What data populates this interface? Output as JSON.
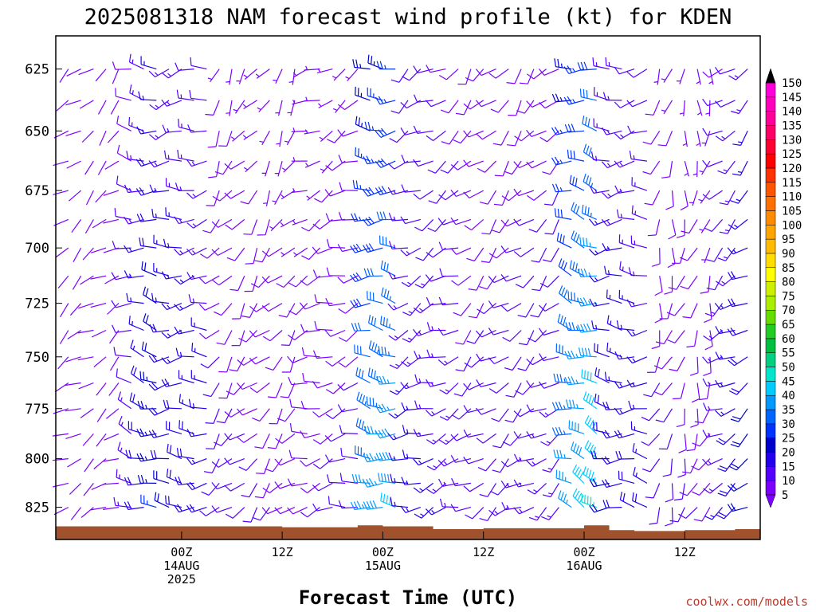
{
  "chart_data": {
    "type": "wind-barb-profile",
    "title": "2025081318 NAM forecast wind profile (kt) for KDEN",
    "xlabel": "Forecast Time (UTC)",
    "ylabel": "",
    "credit": "coolwx.com/models",
    "y_axis": {
      "quantity": "pressure (hPa)",
      "ticks": [
        625,
        650,
        675,
        700,
        725,
        750,
        775,
        800,
        825
      ],
      "range": [
        842,
        612
      ],
      "inverted": true
    },
    "x_axis": {
      "range_hours_from_run": [
        -9,
        75
      ],
      "ticks": [
        {
          "hour": 6,
          "line1": "00Z",
          "line2": "14AUG",
          "line3": "2025"
        },
        {
          "hour": 18,
          "line1": "12Z",
          "line2": "",
          "line3": ""
        },
        {
          "hour": 30,
          "line1": "00Z",
          "line2": "15AUG",
          "line3": ""
        },
        {
          "hour": 42,
          "line1": "12Z",
          "line2": "",
          "line3": ""
        },
        {
          "hour": 54,
          "line1": "00Z",
          "line2": "16AUG",
          "line3": ""
        },
        {
          "hour": 66,
          "line1": "12Z",
          "line2": "",
          "line3": ""
        },
        {
          "hour": 78,
          "line1": "00Z",
          "line2": "17AUG",
          "line3": ""
        }
      ]
    },
    "levels_hpa": [
      625,
      637.5,
      650,
      662.5,
      675,
      687.5,
      700,
      712.5,
      725,
      737.5,
      750,
      762.5,
      775,
      787.5,
      800,
      812.5,
      825,
      837.5
    ],
    "wind_segments": [
      {
        "hour_start": 0,
        "hour_end": 4,
        "speed_start": 12,
        "speed_end": 25,
        "dir": 280
      },
      {
        "hour_start": 4,
        "hour_end": 10,
        "speed_start": 18,
        "speed_end": 15,
        "dir": 265
      },
      {
        "hour_start": 10,
        "hour_end": 20,
        "speed_start": 10,
        "speed_end": 8,
        "dir": 220
      },
      {
        "hour_start": 20,
        "hour_end": 28,
        "speed_start": 8,
        "speed_end": 10,
        "dir": 250
      },
      {
        "hour_start": 28,
        "hour_end": 32,
        "speed_start": 30,
        "speed_end": 35,
        "dir": 275
      },
      {
        "hour_start": 32,
        "hour_end": 40,
        "speed_start": 15,
        "speed_end": 12,
        "dir": 245
      },
      {
        "hour_start": 40,
        "hour_end": 52,
        "speed_start": 10,
        "speed_end": 12,
        "dir": 230
      },
      {
        "hour_start": 52,
        "hour_end": 56,
        "speed_start": 30,
        "speed_end": 40,
        "dir": 285
      },
      {
        "hour_start": 56,
        "hour_end": 62,
        "speed_start": 18,
        "speed_end": 15,
        "dir": 270
      },
      {
        "hour_start": 62,
        "hour_end": 70,
        "speed_start": 10,
        "speed_end": 8,
        "dir": 195
      },
      {
        "hour_start": 70,
        "hour_end": 75,
        "speed_start": 12,
        "speed_end": 22,
        "dir": 235
      }
    ],
    "terrain_pressure_hpa": [
      {
        "hour": -9,
        "p": 835
      },
      {
        "hour": 6,
        "p": 835
      },
      {
        "hour": 18,
        "p": 835.5
      },
      {
        "hour": 27,
        "p": 834.5
      },
      {
        "hour": 30,
        "p": 835
      },
      {
        "hour": 36,
        "p": 836.5
      },
      {
        "hour": 42,
        "p": 836
      },
      {
        "hour": 48,
        "p": 836
      },
      {
        "hour": 54,
        "p": 834.5
      },
      {
        "hour": 57,
        "p": 837
      },
      {
        "hour": 60,
        "p": 837.5
      },
      {
        "hour": 66,
        "p": 837
      },
      {
        "hour": 72,
        "p": 836.5
      },
      {
        "hour": 75,
        "p": 838
      }
    ],
    "terrain_color": "#a0522d",
    "colorbar": {
      "unit": "kt",
      "levels": [
        5,
        10,
        15,
        20,
        25,
        30,
        35,
        40,
        45,
        50,
        55,
        60,
        65,
        70,
        75,
        80,
        85,
        90,
        95,
        100,
        105,
        110,
        115,
        120,
        125,
        130,
        135,
        140,
        145,
        150
      ],
      "colors": [
        "#7b00ff",
        "#5500ff",
        "#2200ee",
        "#0000cc",
        "#0033ff",
        "#0066ff",
        "#0099ff",
        "#00ccff",
        "#00e6cc",
        "#00d080",
        "#00c040",
        "#22cc22",
        "#66dd00",
        "#aaee00",
        "#ccf000",
        "#ffff00",
        "#ffdd00",
        "#ffbb00",
        "#ffa500",
        "#ff8c00",
        "#ff7000",
        "#ff5500",
        "#ff3300",
        "#ff0000",
        "#ff0033",
        "#ff0066",
        "#ff0099",
        "#ff00bb",
        "#ff00dd",
        "#ff00ff"
      ]
    }
  }
}
